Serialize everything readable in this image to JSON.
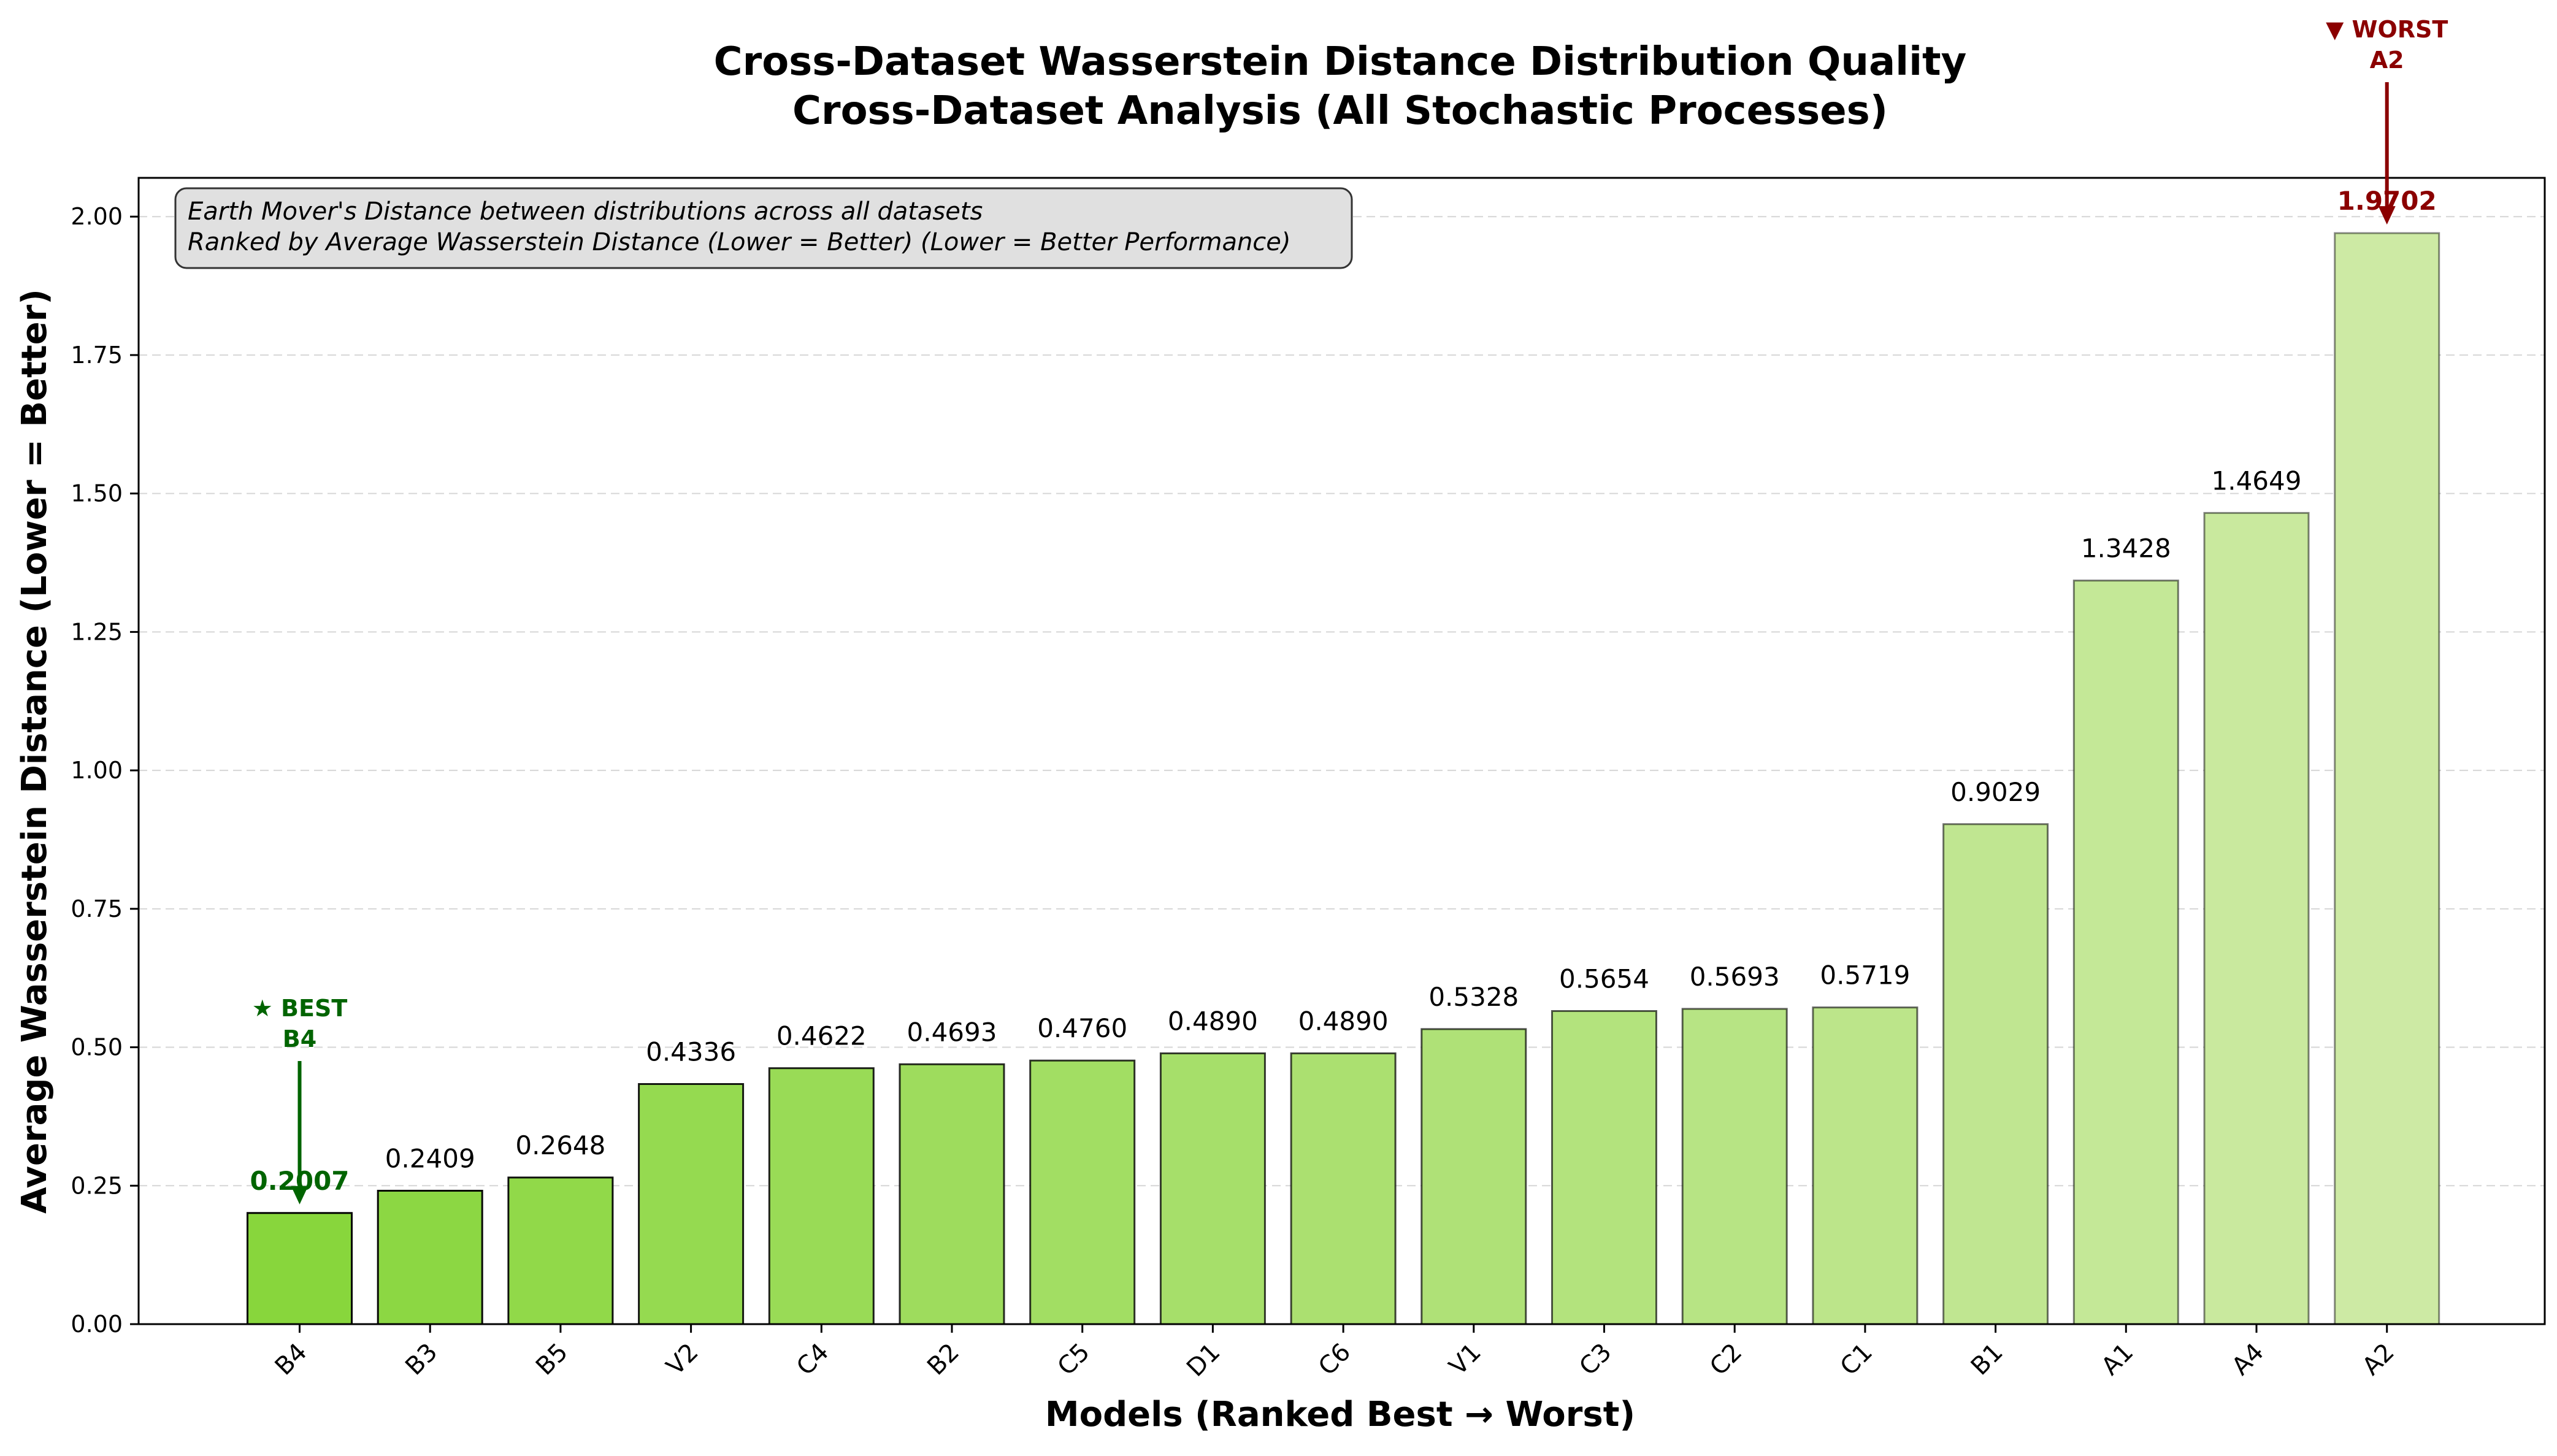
{
  "chart_data": {
    "type": "bar",
    "title": "Cross-Dataset Wasserstein Distance Distribution Quality",
    "subtitle": "Cross-Dataset Analysis (All Stochastic Processes)",
    "xlabel": "Models (Ranked Best → Worst)",
    "ylabel": "Average Wasserstein Distance (Lower = Better)",
    "ylim": [
      0,
      2.07
    ],
    "yticks": [
      "0.00",
      "0.25",
      "0.50",
      "0.75",
      "1.00",
      "1.25",
      "1.50",
      "1.75",
      "2.00"
    ],
    "grid": "horizontal dashed",
    "categories": [
      "B4",
      "B3",
      "B5",
      "V2",
      "C4",
      "B2",
      "C5",
      "D1",
      "C6",
      "V1",
      "C3",
      "C2",
      "C1",
      "B1",
      "A1",
      "A4",
      "A2"
    ],
    "values": [
      0.2007,
      0.2409,
      0.2648,
      0.4336,
      0.4622,
      0.4693,
      0.476,
      0.489,
      0.489,
      0.5328,
      0.5654,
      0.5693,
      0.5719,
      0.9029,
      1.3428,
      1.4649,
      1.9702
    ],
    "value_labels": [
      "0.2007",
      "0.2409",
      "0.2648",
      "0.4336",
      "0.4622",
      "0.4693",
      "0.4760",
      "0.4890",
      "0.4890",
      "0.5328",
      "0.5654",
      "0.5693",
      "0.5719",
      "0.9029",
      "1.3428",
      "1.4649",
      "1.9702"
    ],
    "info_box": {
      "line1": "Earth Mover's Distance between distributions across all datasets",
      "line2": "Ranked by Average Wasserstein Distance (Lower = Better) (Lower = Better Performance)"
    },
    "best_annotation": {
      "line1": "★ BEST",
      "line2": "B4",
      "color": "#006400"
    },
    "worst_annotation": {
      "line1": "▼ WORST",
      "line2": "A2",
      "color": "#8b0000"
    },
    "colors": {
      "bar_start": "#88d63c",
      "bar_end": "#cdeaa4",
      "edge": "#000000"
    }
  }
}
